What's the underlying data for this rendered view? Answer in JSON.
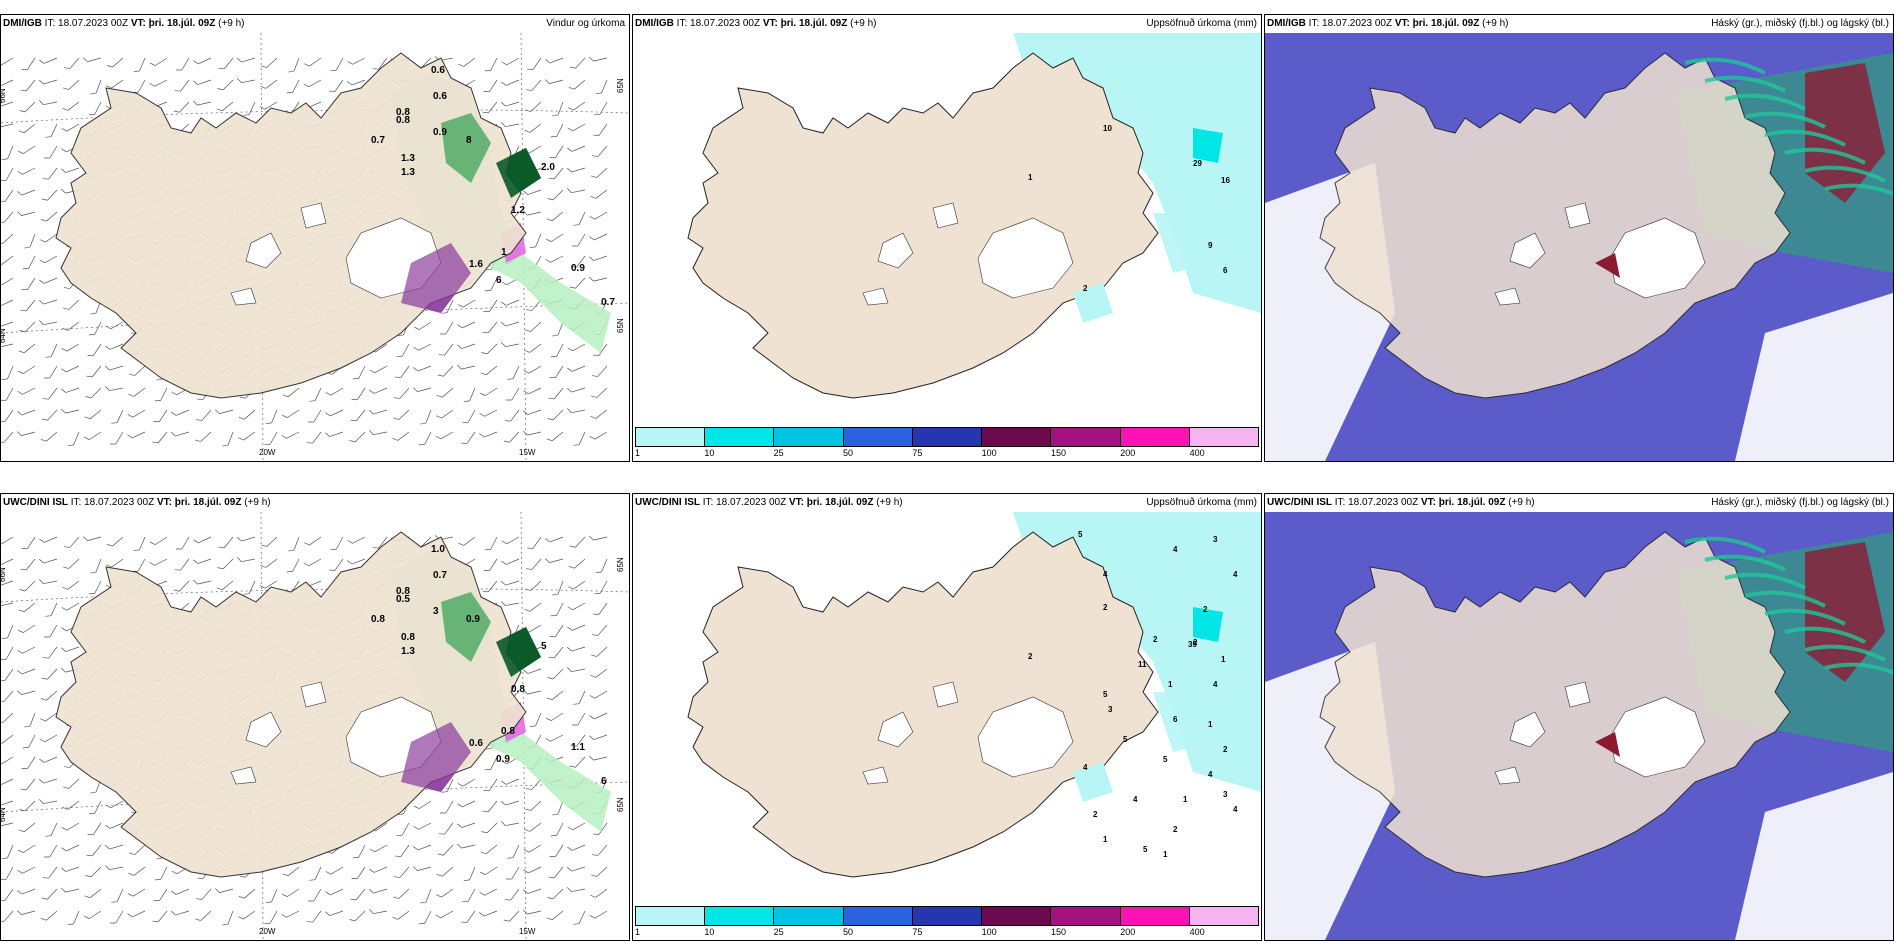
{
  "colors": {
    "land": "#efe2d2",
    "sea": "#ffffff",
    "precip_light": "#b6f0c0",
    "precip_mid": "#3ea65a",
    "precip_dark": "#0b5a2a",
    "purple": "#8b3f9e",
    "magenta": "#e36ae3",
    "cloud_high": "#5b5bc9",
    "cloud_mid": "#2f9c7d",
    "cloud_low": "#8c1b32",
    "accum_light": "#b8f6f6",
    "accum_mid": "#00e6e6"
  },
  "panels": [
    {
      "model": "DMI/IGB",
      "it_label": "IT: 18.07.2023 00Z",
      "vt_label": "VT: þri. 18.júl. 09Z",
      "lead": "(+9 h)",
      "product": "Vindur og úrkoma",
      "kind": "wind",
      "lat_labels": [
        "66N",
        "64N",
        "65N",
        "65N"
      ],
      "lon_labels": [
        "20W",
        "15W"
      ],
      "values": [
        "0.6",
        "0.6",
        "0.8",
        "0.9",
        "0.7",
        "1.3",
        "8",
        "1.3",
        "2.0",
        "1.2",
        "1",
        "1.6",
        "0.9",
        "6",
        "0.7",
        "0.8"
      ]
    },
    {
      "model": "DMI/IGB",
      "it_label": "IT: 18.07.2023 00Z",
      "vt_label": "VT: þri. 18.júl. 09Z",
      "lead": "(+9 h)",
      "product": "Uppsöfnuð úrkoma (mm)",
      "kind": "accum",
      "values": [
        "10",
        "1",
        "29",
        "16",
        "9",
        "6",
        "2"
      ]
    },
    {
      "model": "DMI/IGB",
      "it_label": "IT: 18.07.2023 00Z",
      "vt_label": "VT: þri. 18.júl. 09Z",
      "lead": "(+9 h)",
      "product": "Háský (gr.), miðský (fj.bl.) og lágský (bl.)",
      "kind": "cloud",
      "values": []
    },
    {
      "model": "UWC/DINI ISL",
      "it_label": "IT: 18.07.2023 00Z",
      "vt_label": "VT: þri. 18.júl. 09Z",
      "lead": "(+9 h)",
      "product": "",
      "kind": "wind",
      "lat_labels": [
        "66N",
        "64N",
        "65N",
        "65N"
      ],
      "lon_labels": [
        "20W",
        "15W"
      ],
      "values": [
        "1.0",
        "0.7",
        "0.5",
        "3",
        "0.8",
        "0.8",
        "0.9",
        "1.3",
        "5",
        "0.8",
        "0.8",
        "0.6",
        "1.1",
        "0.9",
        "6",
        "0.8"
      ]
    },
    {
      "model": "UWC/DINI ISL",
      "it_label": "IT: 18.07.2023 00Z",
      "vt_label": "VT: þri. 18.júl. 09Z",
      "lead": "(+9 h)",
      "product": "Uppsöfnuð úrkoma (mm)",
      "kind": "accum",
      "values": [
        "2",
        "2",
        "2",
        "1",
        "1",
        "2",
        "4",
        "5",
        "4",
        "4",
        "3",
        "4",
        "2",
        "39",
        "2",
        "11",
        "1",
        "6",
        "5",
        "3",
        "5",
        "4",
        "5",
        "4",
        "3",
        "4",
        "2",
        "1",
        "5",
        "1",
        "1",
        "2",
        "4"
      ]
    },
    {
      "model": "UWC/DINI ISL",
      "it_label": "IT: 18.07.2023 00Z",
      "vt_label": "VT: þri. 18.júl. 09Z",
      "lead": "(+9 h)",
      "product": "Háský (gr.), miðský (fj.bl.) og lágský (bl.)",
      "kind": "cloud",
      "values": []
    }
  ],
  "colorbar": {
    "ticks": [
      "1",
      "10",
      "25",
      "50",
      "75",
      "100",
      "150",
      "200",
      "400"
    ],
    "colors": [
      "#b8f6f6",
      "#00e6e6",
      "#00c4e4",
      "#2a62e0",
      "#2436b0",
      "#6b0a4e",
      "#a3127e",
      "#ff12b4",
      "#f6b4f0"
    ]
  }
}
